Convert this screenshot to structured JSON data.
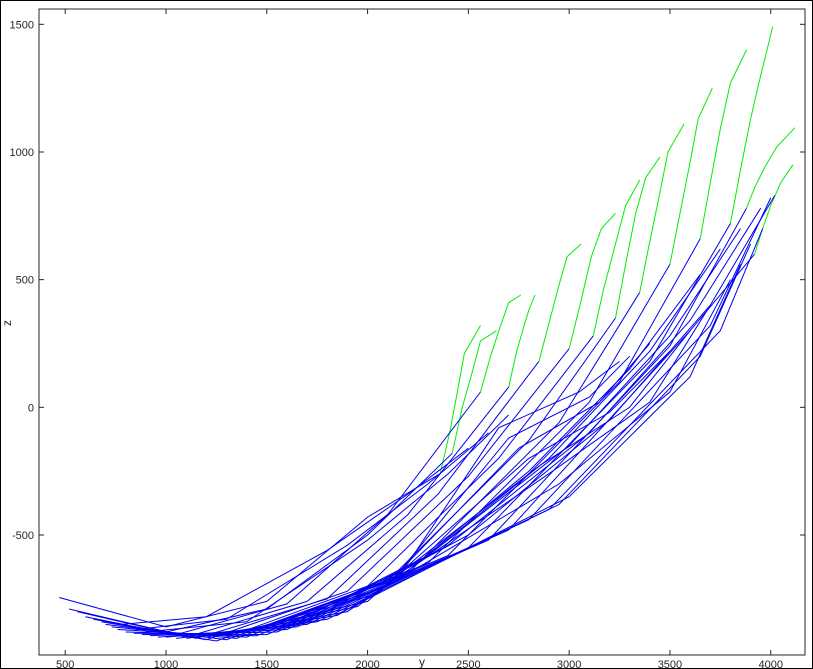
{
  "chart_data": {
    "type": "line",
    "title": "",
    "xlabel": "y",
    "ylabel": "z",
    "xlim": [
      370,
      4170
    ],
    "ylim": [
      -970,
      1560
    ],
    "x_ticks": [
      500,
      1000,
      1500,
      2000,
      2500,
      3000,
      3500,
      4000
    ],
    "y_ticks": [
      -500,
      0,
      500,
      1000,
      1500
    ],
    "x_tick_labels": [
      "500",
      "1000",
      "1500",
      "2000",
      "2500",
      "3000",
      "3500",
      "4000"
    ],
    "y_tick_labels": [
      "-500",
      "0",
      "500",
      "1000",
      "1500"
    ],
    "grid": false,
    "legend": "none",
    "colors": {
      "primary": "#0000ee",
      "secondary": "#00ee00"
    },
    "series": [
      {
        "color": "#0000ee",
        "points": [
          [
            470,
            -745
          ],
          [
            1000,
            -860
          ],
          [
            1500,
            -760
          ],
          [
            2000,
            -430
          ],
          [
            2360,
            -260
          ]
        ]
      },
      {
        "color": "#00ee00",
        "points": [
          [
            2360,
            -260
          ],
          [
            2410,
            -90
          ],
          [
            2450,
            80
          ],
          [
            2480,
            210
          ],
          [
            2560,
            320
          ]
        ]
      },
      {
        "color": "#0000ee",
        "points": [
          [
            520,
            -790
          ],
          [
            1000,
            -880
          ],
          [
            1500,
            -790
          ],
          [
            2000,
            -500
          ],
          [
            2420,
            -180
          ]
        ]
      },
      {
        "color": "#00ee00",
        "points": [
          [
            2420,
            -180
          ],
          [
            2470,
            0
          ],
          [
            2520,
            140
          ],
          [
            2560,
            260
          ],
          [
            2640,
            300
          ]
        ]
      },
      {
        "color": "#0000ee",
        "points": [
          [
            560,
            -800
          ],
          [
            1050,
            -890
          ],
          [
            1600,
            -770
          ],
          [
            2100,
            -420
          ],
          [
            2560,
            60
          ]
        ]
      },
      {
        "color": "#00ee00",
        "points": [
          [
            2560,
            60
          ],
          [
            2610,
            200
          ],
          [
            2660,
            320
          ],
          [
            2700,
            410
          ],
          [
            2760,
            440
          ]
        ]
      },
      {
        "color": "#0000ee",
        "points": [
          [
            600,
            -820
          ],
          [
            1100,
            -900
          ],
          [
            1700,
            -760
          ],
          [
            2200,
            -420
          ],
          [
            2700,
            80
          ]
        ]
      },
      {
        "color": "#00ee00",
        "points": [
          [
            2700,
            80
          ],
          [
            2740,
            220
          ],
          [
            2780,
            330
          ],
          [
            2800,
            380
          ],
          [
            2830,
            440
          ]
        ]
      },
      {
        "color": "#0000ee",
        "points": [
          [
            620,
            -810
          ],
          [
            1150,
            -905
          ],
          [
            1800,
            -750
          ],
          [
            2350,
            -340
          ],
          [
            2850,
            180
          ]
        ]
      },
      {
        "color": "#00ee00",
        "points": [
          [
            2850,
            180
          ],
          [
            2900,
            330
          ],
          [
            2950,
            480
          ],
          [
            2990,
            590
          ],
          [
            3060,
            640
          ]
        ]
      },
      {
        "color": "#0000ee",
        "points": [
          [
            640,
            -830
          ],
          [
            1200,
            -910
          ],
          [
            1900,
            -720
          ],
          [
            2500,
            -270
          ],
          [
            3000,
            230
          ]
        ]
      },
      {
        "color": "#00ee00",
        "points": [
          [
            3000,
            230
          ],
          [
            3060,
            420
          ],
          [
            3110,
            590
          ],
          [
            3160,
            700
          ],
          [
            3230,
            760
          ]
        ]
      },
      {
        "color": "#0000ee",
        "points": [
          [
            680,
            -840
          ],
          [
            1250,
            -915
          ],
          [
            2000,
            -700
          ],
          [
            2650,
            -200
          ],
          [
            3120,
            280
          ]
        ]
      },
      {
        "color": "#00ee00",
        "points": [
          [
            3120,
            280
          ],
          [
            3170,
            460
          ],
          [
            3230,
            640
          ],
          [
            3280,
            790
          ],
          [
            3350,
            890
          ]
        ]
      },
      {
        "color": "#0000ee",
        "points": [
          [
            700,
            -850
          ],
          [
            1300,
            -910
          ],
          [
            2100,
            -680
          ],
          [
            2800,
            -130
          ],
          [
            3230,
            350
          ]
        ]
      },
      {
        "color": "#00ee00",
        "points": [
          [
            3230,
            350
          ],
          [
            3280,
            560
          ],
          [
            3330,
            760
          ],
          [
            3380,
            900
          ],
          [
            3450,
            980
          ]
        ]
      },
      {
        "color": "#0000ee",
        "points": [
          [
            730,
            -860
          ],
          [
            1350,
            -905
          ],
          [
            2200,
            -650
          ],
          [
            2950,
            -60
          ],
          [
            3350,
            450
          ]
        ]
      },
      {
        "color": "#00ee00",
        "points": [
          [
            3350,
            450
          ],
          [
            3400,
            650
          ],
          [
            3450,
            840
          ],
          [
            3490,
            1000
          ],
          [
            3570,
            1110
          ]
        ]
      },
      {
        "color": "#0000ee",
        "points": [
          [
            760,
            -870
          ],
          [
            1400,
            -900
          ],
          [
            2300,
            -610
          ],
          [
            3100,
            20
          ],
          [
            3500,
            560
          ]
        ]
      },
      {
        "color": "#00ee00",
        "points": [
          [
            3500,
            560
          ],
          [
            3550,
            760
          ],
          [
            3600,
            960
          ],
          [
            3640,
            1130
          ],
          [
            3710,
            1250
          ]
        ]
      },
      {
        "color": "#0000ee",
        "points": [
          [
            800,
            -880
          ],
          [
            1450,
            -895
          ],
          [
            2400,
            -580
          ],
          [
            3250,
            100
          ],
          [
            3650,
            660
          ]
        ]
      },
      {
        "color": "#00ee00",
        "points": [
          [
            3650,
            660
          ],
          [
            3700,
            880
          ],
          [
            3750,
            1090
          ],
          [
            3800,
            1270
          ],
          [
            3880,
            1400
          ]
        ]
      },
      {
        "color": "#0000ee",
        "points": [
          [
            840,
            -885
          ],
          [
            1500,
            -890
          ],
          [
            2500,
            -550
          ],
          [
            3400,
            180
          ],
          [
            3800,
            720
          ]
        ]
      },
      {
        "color": "#00ee00",
        "points": [
          [
            3800,
            720
          ],
          [
            3850,
            930
          ],
          [
            3900,
            1130
          ],
          [
            3950,
            1300
          ],
          [
            4010,
            1490
          ]
        ]
      },
      {
        "color": "#0000ee",
        "points": [
          [
            880,
            -890
          ],
          [
            1550,
            -880
          ],
          [
            2600,
            -520
          ],
          [
            3500,
            240
          ],
          [
            3880,
            780
          ]
        ]
      },
      {
        "color": "#00ee00",
        "points": [
          [
            3880,
            780
          ],
          [
            3920,
            860
          ],
          [
            3970,
            940
          ],
          [
            4030,
            1020
          ],
          [
            4120,
            1095
          ]
        ]
      },
      {
        "color": "#0000ee",
        "points": [
          [
            920,
            -895
          ],
          [
            1600,
            -870
          ],
          [
            2700,
            -480
          ],
          [
            3600,
            300
          ],
          [
            3920,
            600
          ]
        ]
      },
      {
        "color": "#00ee00",
        "points": [
          [
            3920,
            600
          ],
          [
            3960,
            700
          ],
          [
            4000,
            790
          ],
          [
            4050,
            880
          ],
          [
            4110,
            950
          ]
        ]
      },
      {
        "color": "#0000ee",
        "points": [
          [
            960,
            -900
          ],
          [
            1650,
            -860
          ],
          [
            2800,
            -440
          ],
          [
            3700,
            320
          ],
          [
            4000,
            820
          ]
        ]
      },
      {
        "color": "#0000ee",
        "points": [
          [
            1000,
            -900
          ],
          [
            1700,
            -850
          ],
          [
            2900,
            -400
          ],
          [
            3750,
            300
          ],
          [
            3960,
            700
          ]
        ]
      },
      {
        "color": "#0000ee",
        "points": [
          [
            1050,
            -905
          ],
          [
            1750,
            -840
          ],
          [
            2950,
            -380
          ],
          [
            3650,
            200
          ],
          [
            3900,
            640
          ]
        ]
      },
      {
        "color": "#0000ee",
        "points": [
          [
            1100,
            -905
          ],
          [
            1800,
            -830
          ],
          [
            3000,
            -350
          ],
          [
            3600,
            120
          ],
          [
            3850,
            560
          ]
        ]
      },
      {
        "color": "#0000ee",
        "points": [
          [
            1150,
            -900
          ],
          [
            1850,
            -815
          ],
          [
            2950,
            -300
          ],
          [
            3500,
            60
          ],
          [
            3800,
            500
          ]
        ]
      },
      {
        "color": "#0000ee",
        "points": [
          [
            1200,
            -900
          ],
          [
            1900,
            -800
          ],
          [
            2900,
            -260
          ],
          [
            3400,
            20
          ],
          [
            3700,
            400
          ]
        ]
      },
      {
        "color": "#0000ee",
        "points": [
          [
            1250,
            -895
          ],
          [
            1950,
            -780
          ],
          [
            2850,
            -230
          ],
          [
            3300,
            0
          ],
          [
            3600,
            300
          ]
        ]
      },
      {
        "color": "#0000ee",
        "points": [
          [
            1300,
            -890
          ],
          [
            2000,
            -760
          ],
          [
            2800,
            -200
          ],
          [
            3200,
            -20
          ],
          [
            3500,
            220
          ]
        ]
      },
      {
        "color": "#0000ee",
        "points": [
          [
            1350,
            -885
          ],
          [
            2050,
            -730
          ],
          [
            2750,
            -160
          ],
          [
            3150,
            20
          ],
          [
            3400,
            250
          ]
        ]
      },
      {
        "color": "#0000ee",
        "points": [
          [
            1400,
            -880
          ],
          [
            2100,
            -700
          ],
          [
            2700,
            -120
          ],
          [
            3100,
            40
          ],
          [
            3300,
            200
          ]
        ]
      },
      {
        "color": "#0000ee",
        "points": [
          [
            1450,
            -870
          ],
          [
            2150,
            -670
          ],
          [
            2650,
            -80
          ],
          [
            3050,
            60
          ],
          [
            3250,
            180
          ]
        ]
      },
      {
        "color": "#0000ee",
        "points": [
          [
            900,
            -880
          ],
          [
            1400,
            -840
          ],
          [
            2000,
            -520
          ],
          [
            2400,
            -260
          ],
          [
            2700,
            -30
          ]
        ]
      },
      {
        "color": "#0000ee",
        "points": [
          [
            850,
            -870
          ],
          [
            1300,
            -830
          ],
          [
            1900,
            -540
          ],
          [
            2300,
            -300
          ],
          [
            2600,
            -100
          ]
        ]
      },
      {
        "color": "#0000ee",
        "points": [
          [
            780,
            -850
          ],
          [
            1200,
            -820
          ],
          [
            1800,
            -560
          ],
          [
            2200,
            -340
          ],
          [
            2500,
            -160
          ]
        ]
      },
      {
        "color": "#0000ee",
        "points": [
          [
            1500,
            -880
          ],
          [
            2200,
            -640
          ],
          [
            2800,
            -250
          ],
          [
            3300,
            150
          ],
          [
            3650,
            520
          ]
        ]
      },
      {
        "color": "#0000ee",
        "points": [
          [
            1550,
            -870
          ],
          [
            2250,
            -610
          ],
          [
            2900,
            -200
          ],
          [
            3400,
            220
          ],
          [
            3750,
            620
          ]
        ]
      },
      {
        "color": "#0000ee",
        "points": [
          [
            1600,
            -860
          ],
          [
            2300,
            -580
          ],
          [
            3000,
            -150
          ],
          [
            3500,
            280
          ],
          [
            3850,
            700
          ]
        ]
      },
      {
        "color": "#0000ee",
        "points": [
          [
            1650,
            -850
          ],
          [
            2400,
            -540
          ],
          [
            3100,
            -100
          ],
          [
            3600,
            340
          ],
          [
            3950,
            780
          ]
        ]
      },
      {
        "color": "#0000ee",
        "points": [
          [
            1700,
            -840
          ],
          [
            2500,
            -500
          ],
          [
            3200,
            -50
          ],
          [
            3700,
            400
          ],
          [
            4020,
            830
          ]
        ]
      }
    ]
  }
}
